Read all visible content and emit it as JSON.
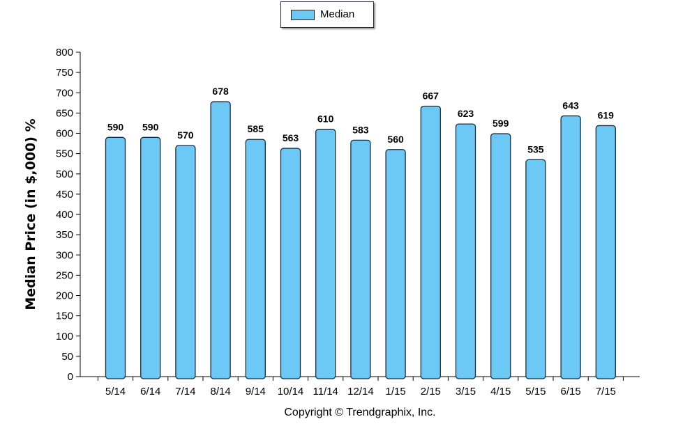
{
  "legend": {
    "label": "Median"
  },
  "footer": {
    "copyright": "Copyright © Trendgraphix, Inc."
  },
  "colors": {
    "bar": "#6cc9f5",
    "bar_stroke": "#1e2a3a",
    "axis": "#000000"
  },
  "chart_data": {
    "type": "bar",
    "title": "",
    "xlabel": "",
    "ylabel": "Median Price (in $,000) %",
    "ylim": [
      0,
      800
    ],
    "ytick_step": 50,
    "grid": false,
    "legend_position": "top-center",
    "categories": [
      "5/14",
      "6/14",
      "7/14",
      "8/14",
      "9/14",
      "10/14",
      "11/14",
      "12/14",
      "1/15",
      "2/15",
      "3/15",
      "4/15",
      "5/15",
      "6/15",
      "7/15"
    ],
    "series": [
      {
        "name": "Median",
        "values": [
          590,
          590,
          570,
          678,
          585,
          563,
          610,
          583,
          560,
          667,
          623,
          599,
          535,
          643,
          619
        ]
      }
    ]
  }
}
